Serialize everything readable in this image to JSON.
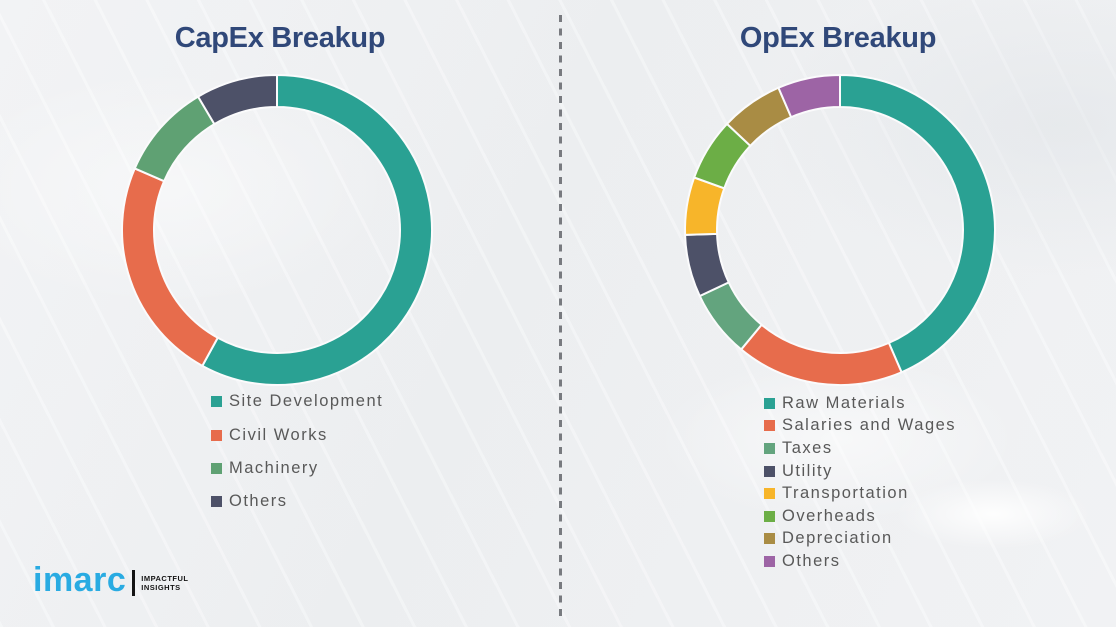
{
  "page": {
    "background_color": "#f2f3f5",
    "divider_color": "#63666b",
    "title_color": "#304879",
    "legend_text_color": "#595959",
    "segment_gap_color": "#fbfbfc"
  },
  "chart_data": [
    {
      "type": "pie",
      "subtype": "donut",
      "title": "CapEx Breakup",
      "title_color": "#304879",
      "legend_position": "below-chart-left",
      "direction": "clockwise",
      "start_angle_deg": 0,
      "values_are": "estimated percent of ring",
      "segments": [
        {
          "label": "Site Development",
          "value": 58,
          "color": "#2AA193"
        },
        {
          "label": "Civil Works",
          "value": 23.5,
          "color": "#E76C4C"
        },
        {
          "label": "Machinery",
          "value": 10,
          "color": "#5FA173"
        },
        {
          "label": "Others",
          "value": 8.5,
          "color": "#4D5168"
        }
      ]
    },
    {
      "type": "pie",
      "subtype": "donut",
      "title": "OpEx Breakup",
      "title_color": "#304879",
      "legend_position": "below-chart-left",
      "direction": "clockwise",
      "start_angle_deg": 0,
      "values_are": "estimated percent of ring",
      "segments": [
        {
          "label": "Raw Materials",
          "value": 43.5,
          "color": "#2AA193"
        },
        {
          "label": "Salaries and Wages",
          "value": 17.5,
          "color": "#E76C4C"
        },
        {
          "label": "Taxes",
          "value": 7,
          "color": "#63A47E"
        },
        {
          "label": "Utility",
          "value": 6.5,
          "color": "#4D5168"
        },
        {
          "label": "Transportation",
          "value": 6,
          "color": "#F7B52A"
        },
        {
          "label": "Overheads",
          "value": 6.5,
          "color": "#6CAE46"
        },
        {
          "label": "Depreciation",
          "value": 6.5,
          "color": "#A98C44"
        },
        {
          "label": "Others",
          "value": 6.5,
          "color": "#9D64A5"
        }
      ]
    }
  ],
  "logo": {
    "brand": "imarc",
    "tagline_line1": "IMPACTFUL",
    "tagline_line2": "INSIGHTS",
    "brand_color": "#29ABE2",
    "tagline_color": "#141414"
  }
}
